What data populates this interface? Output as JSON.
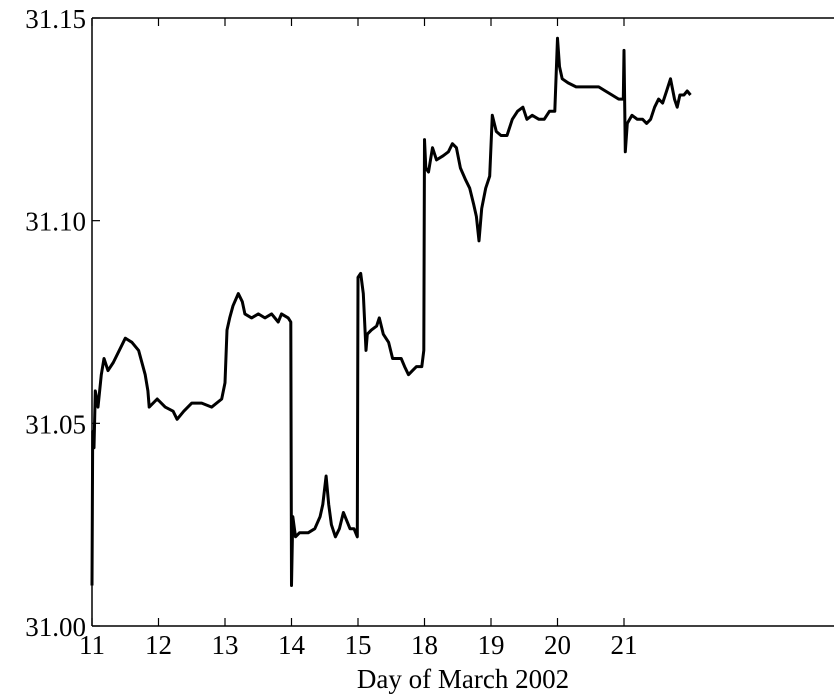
{
  "chart_data": {
    "type": "line",
    "title": "",
    "xlabel": "Day of March 2002",
    "ylabel": "",
    "ylim": [
      31.0,
      31.15
    ],
    "y_ticks": [
      "31.00",
      "31.05",
      "31.10",
      "31.15"
    ],
    "x_ticks": [
      {
        "label": "11",
        "at": 0
      },
      {
        "label": "12",
        "at": 1
      },
      {
        "label": "13",
        "at": 2
      },
      {
        "label": "14",
        "at": 3
      },
      {
        "label": "15",
        "at": 4
      },
      {
        "label": "18",
        "at": 5
      },
      {
        "label": "19",
        "at": 6
      },
      {
        "label": "20",
        "at": 7
      },
      {
        "label": "21",
        "at": 8
      }
    ],
    "grid": false,
    "series": [
      {
        "color": "#000000",
        "points": [
          [
            0.0,
            31.01
          ],
          [
            0.01,
            31.048
          ],
          [
            0.03,
            31.044
          ],
          [
            0.05,
            31.058
          ],
          [
            0.09,
            31.054
          ],
          [
            0.14,
            31.062
          ],
          [
            0.18,
            31.066
          ],
          [
            0.24,
            31.063
          ],
          [
            0.32,
            31.065
          ],
          [
            0.44,
            31.069
          ],
          [
            0.5,
            31.071
          ],
          [
            0.6,
            31.07
          ],
          [
            0.7,
            31.068
          ],
          [
            0.8,
            31.062
          ],
          [
            0.84,
            31.058
          ],
          [
            0.86,
            31.054
          ],
          [
            0.98,
            31.056
          ],
          [
            1.1,
            31.054
          ],
          [
            1.22,
            31.053
          ],
          [
            1.28,
            31.051
          ],
          [
            1.38,
            31.053
          ],
          [
            1.5,
            31.055
          ],
          [
            1.65,
            31.055
          ],
          [
            1.8,
            31.054
          ],
          [
            1.95,
            31.056
          ],
          [
            2.0,
            31.06
          ],
          [
            2.03,
            31.073
          ],
          [
            2.07,
            31.076
          ],
          [
            2.12,
            31.079
          ],
          [
            2.2,
            31.082
          ],
          [
            2.26,
            31.08
          ],
          [
            2.3,
            31.077
          ],
          [
            2.4,
            31.076
          ],
          [
            2.5,
            31.077
          ],
          [
            2.6,
            31.076
          ],
          [
            2.7,
            31.077
          ],
          [
            2.8,
            31.075
          ],
          [
            2.85,
            31.077
          ],
          [
            2.95,
            31.076
          ],
          [
            2.99,
            31.075
          ],
          [
            3.0,
            31.01
          ],
          [
            3.02,
            31.027
          ],
          [
            3.06,
            31.022
          ],
          [
            3.12,
            31.023
          ],
          [
            3.25,
            31.023
          ],
          [
            3.35,
            31.024
          ],
          [
            3.43,
            31.027
          ],
          [
            3.47,
            31.03
          ],
          [
            3.52,
            31.037
          ],
          [
            3.56,
            31.03
          ],
          [
            3.6,
            31.025
          ],
          [
            3.66,
            31.022
          ],
          [
            3.72,
            31.024
          ],
          [
            3.78,
            31.028
          ],
          [
            3.83,
            31.026
          ],
          [
            3.88,
            31.024
          ],
          [
            3.94,
            31.024
          ],
          [
            3.99,
            31.022
          ],
          [
            4.0,
            31.086
          ],
          [
            4.04,
            31.087
          ],
          [
            4.08,
            31.082
          ],
          [
            4.12,
            31.068
          ],
          [
            4.14,
            31.072
          ],
          [
            4.2,
            31.073
          ],
          [
            4.28,
            31.074
          ],
          [
            4.32,
            31.076
          ],
          [
            4.38,
            31.072
          ],
          [
            4.46,
            31.07
          ],
          [
            4.52,
            31.066
          ],
          [
            4.58,
            31.066
          ],
          [
            4.65,
            31.066
          ],
          [
            4.7,
            31.064
          ],
          [
            4.76,
            31.062
          ],
          [
            4.82,
            31.063
          ],
          [
            4.88,
            31.064
          ],
          [
            4.96,
            31.064
          ],
          [
            4.99,
            31.068
          ],
          [
            5.0,
            31.12
          ],
          [
            5.02,
            31.113
          ],
          [
            5.06,
            31.112
          ],
          [
            5.12,
            31.118
          ],
          [
            5.18,
            31.115
          ],
          [
            5.28,
            31.116
          ],
          [
            5.36,
            31.117
          ],
          [
            5.42,
            31.119
          ],
          [
            5.48,
            31.118
          ],
          [
            5.54,
            31.113
          ],
          [
            5.62,
            31.11
          ],
          [
            5.68,
            31.108
          ],
          [
            5.74,
            31.104
          ],
          [
            5.78,
            31.101
          ],
          [
            5.82,
            31.095
          ],
          [
            5.86,
            31.103
          ],
          [
            5.92,
            31.108
          ],
          [
            5.98,
            31.111
          ],
          [
            6.02,
            31.126
          ],
          [
            6.08,
            31.122
          ],
          [
            6.15,
            31.121
          ],
          [
            6.24,
            31.121
          ],
          [
            6.32,
            31.125
          ],
          [
            6.4,
            31.127
          ],
          [
            6.48,
            31.128
          ],
          [
            6.54,
            31.125
          ],
          [
            6.62,
            31.126
          ],
          [
            6.72,
            31.125
          ],
          [
            6.8,
            31.125
          ],
          [
            6.88,
            31.127
          ],
          [
            6.96,
            31.127
          ],
          [
            7.0,
            31.145
          ],
          [
            7.03,
            31.138
          ],
          [
            7.07,
            31.135
          ],
          [
            7.16,
            31.134
          ],
          [
            7.28,
            31.133
          ],
          [
            7.4,
            31.133
          ],
          [
            7.52,
            31.133
          ],
          [
            7.62,
            31.133
          ],
          [
            7.72,
            31.132
          ],
          [
            7.82,
            31.131
          ],
          [
            7.92,
            31.13
          ],
          [
            7.99,
            31.13
          ],
          [
            8.0,
            31.142
          ],
          [
            8.02,
            31.117
          ],
          [
            8.05,
            31.124
          ],
          [
            8.12,
            31.126
          ],
          [
            8.2,
            31.125
          ],
          [
            8.28,
            31.125
          ],
          [
            8.34,
            31.124
          ],
          [
            8.4,
            31.125
          ],
          [
            8.46,
            31.128
          ],
          [
            8.52,
            31.13
          ],
          [
            8.58,
            31.129
          ],
          [
            8.64,
            31.132
          ],
          [
            8.7,
            31.135
          ],
          [
            8.76,
            31.13
          ],
          [
            8.8,
            31.128
          ],
          [
            8.84,
            31.131
          ],
          [
            8.9,
            31.131
          ],
          [
            8.95,
            31.132
          ],
          [
            9.0,
            31.131
          ]
        ]
      }
    ]
  }
}
